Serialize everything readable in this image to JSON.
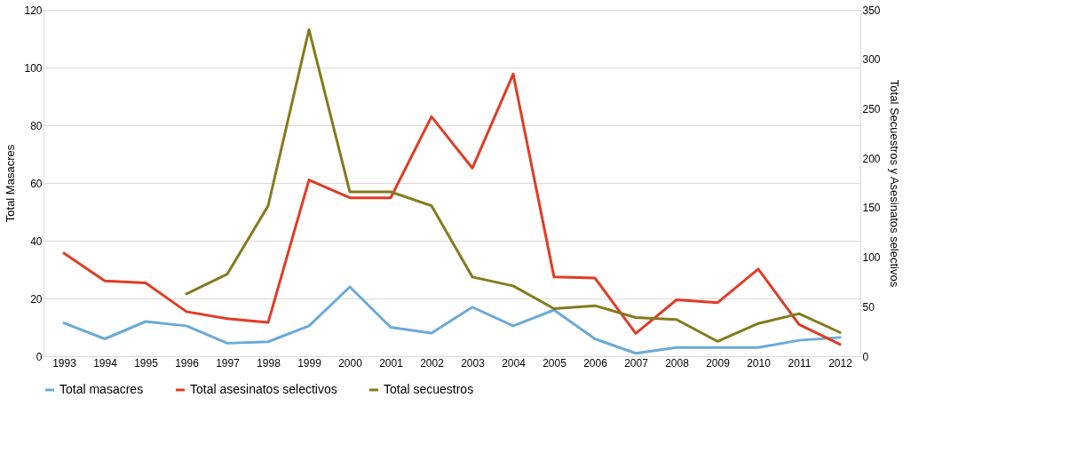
{
  "chart_data": {
    "type": "line",
    "categories": [
      "1993",
      "1994",
      "1995",
      "1996",
      "1997",
      "1998",
      "1999",
      "2000",
      "2001",
      "2002",
      "2003",
      "2004",
      "2005",
      "2006",
      "2007",
      "2008",
      "2009",
      "2010",
      "2011",
      "2012"
    ],
    "ylabel": "Total Masacres",
    "y2label": "Total Secuestros y Asesinatos selectivos",
    "ylim": [
      0,
      120
    ],
    "yticks": [
      0,
      20,
      40,
      60,
      80,
      100,
      120
    ],
    "y2lim": [
      0,
      350
    ],
    "y2ticks": [
      0,
      50,
      100,
      150,
      200,
      250,
      300,
      350
    ],
    "grid": "y",
    "legend": "bottom",
    "marker": "none",
    "line_style": "solid",
    "series": [
      {
        "name": "Total masacres",
        "color": "#6aaad8",
        "values": [
          11.5,
          6,
          12,
          10.5,
          4.5,
          5,
          10.5,
          24,
          10,
          8,
          17,
          10.5,
          16,
          6,
          1,
          3,
          3,
          3,
          5.5,
          6.5
        ]
      },
      {
        "name": "Total asesinatos selectivos",
        "color": "#e03c24",
        "axis": "y2",
        "values": [
          104,
          76,
          74,
          45,
          38,
          34,
          178,
          160,
          160,
          242,
          190,
          285,
          80,
          79,
          23,
          57,
          54,
          88,
          32,
          12
        ]
      },
      {
        "name": "Total secuestros",
        "color": "#857a1c",
        "axis": "y2",
        "values": [
          null,
          null,
          null,
          63,
          83,
          152,
          330,
          166,
          166,
          152,
          80,
          71,
          48,
          51,
          39,
          37,
          15,
          33,
          43,
          24
        ]
      }
    ]
  }
}
